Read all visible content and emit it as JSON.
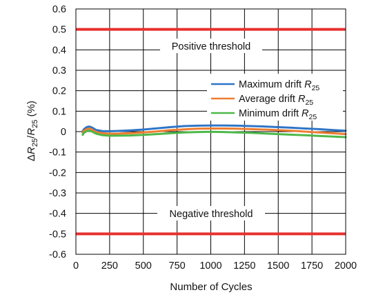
{
  "chart_data": {
    "type": "line",
    "xlabel": "Number of Cycles",
    "ylabel": {
      "delta": "Δ",
      "sym": "R",
      "sub": "25",
      "sep": "/",
      "tail": " (%)"
    },
    "xlim": [
      0,
      2000
    ],
    "ylim": [
      -0.6,
      0.6
    ],
    "x_ticks": [
      0,
      250,
      500,
      750,
      1000,
      1250,
      1500,
      1750,
      2000
    ],
    "y_ticks": [
      0.6,
      0.5,
      0.4,
      0.3,
      0.2,
      0.1,
      0,
      -0.1,
      -0.2,
      -0.3,
      -0.4,
      -0.5,
      -0.6
    ],
    "x_tick_labels": [
      "0",
      "250",
      "500",
      "750",
      "1000",
      "1250",
      "1500",
      "1750",
      "2000"
    ],
    "y_tick_labels": [
      "0.6",
      "0.5",
      "0.4",
      "0.3",
      "0.2",
      "0.1",
      "0",
      "-0.1",
      "-0.2",
      "-0.3",
      "-0.4",
      "-0.5",
      "-0.6"
    ],
    "grid": true,
    "legend_position": "right",
    "thresholds": [
      {
        "label": "Positive threshold",
        "y": 0.5,
        "color": "#e8302f"
      },
      {
        "label": "Negative threshold",
        "y": -0.5,
        "color": "#e8302f"
      }
    ],
    "series": [
      {
        "name": "Maximum drift R25",
        "legend": {
          "prefix": "Maximum drift ",
          "sym": "R",
          "sub": "25"
        },
        "color": "#2e75c6",
        "x": [
          50,
          60,
          80,
          100,
          120,
          150,
          200,
          250,
          300,
          400,
          500,
          600,
          700,
          800,
          900,
          1000,
          1100,
          1200,
          1300,
          1400,
          1500,
          1600,
          1700,
          1800,
          1900,
          2000
        ],
        "y": [
          0.002,
          0.012,
          0.022,
          0.025,
          0.02,
          0.008,
          0.002,
          0.002,
          0.003,
          0.006,
          0.01,
          0.016,
          0.022,
          0.027,
          0.029,
          0.03,
          0.03,
          0.029,
          0.027,
          0.025,
          0.022,
          0.019,
          0.015,
          0.012,
          0.008,
          0.004
        ]
      },
      {
        "name": "Average drift R25",
        "legend": {
          "prefix": "Average drift ",
          "sym": "R",
          "sub": "25"
        },
        "color": "#ed7d31",
        "x": [
          50,
          60,
          80,
          100,
          120,
          150,
          200,
          250,
          300,
          400,
          500,
          600,
          700,
          800,
          900,
          1000,
          1100,
          1200,
          1300,
          1400,
          1500,
          1600,
          1700,
          1800,
          1900,
          2000
        ],
        "y": [
          -0.006,
          0.004,
          0.012,
          0.015,
          0.01,
          -0.002,
          -0.008,
          -0.01,
          -0.01,
          -0.008,
          -0.004,
          0.001,
          0.007,
          0.011,
          0.014,
          0.015,
          0.015,
          0.014,
          0.012,
          0.01,
          0.007,
          0.004,
          0.0,
          -0.004,
          -0.008,
          -0.012
        ]
      },
      {
        "name": "Minimum drift R25",
        "legend": {
          "prefix": "Minimum drift ",
          "sym": "R",
          "sub": "25"
        },
        "color": "#4cb848",
        "x": [
          50,
          60,
          80,
          100,
          120,
          150,
          200,
          250,
          300,
          400,
          500,
          600,
          700,
          800,
          900,
          1000,
          1100,
          1200,
          1300,
          1400,
          1500,
          1600,
          1700,
          1800,
          1900,
          2000
        ],
        "y": [
          -0.016,
          -0.006,
          0.002,
          0.005,
          0.0,
          -0.01,
          -0.018,
          -0.02,
          -0.02,
          -0.019,
          -0.016,
          -0.012,
          -0.008,
          -0.004,
          -0.002,
          -0.001,
          -0.002,
          -0.004,
          -0.006,
          -0.009,
          -0.012,
          -0.015,
          -0.018,
          -0.021,
          -0.024,
          -0.027
        ]
      }
    ]
  }
}
